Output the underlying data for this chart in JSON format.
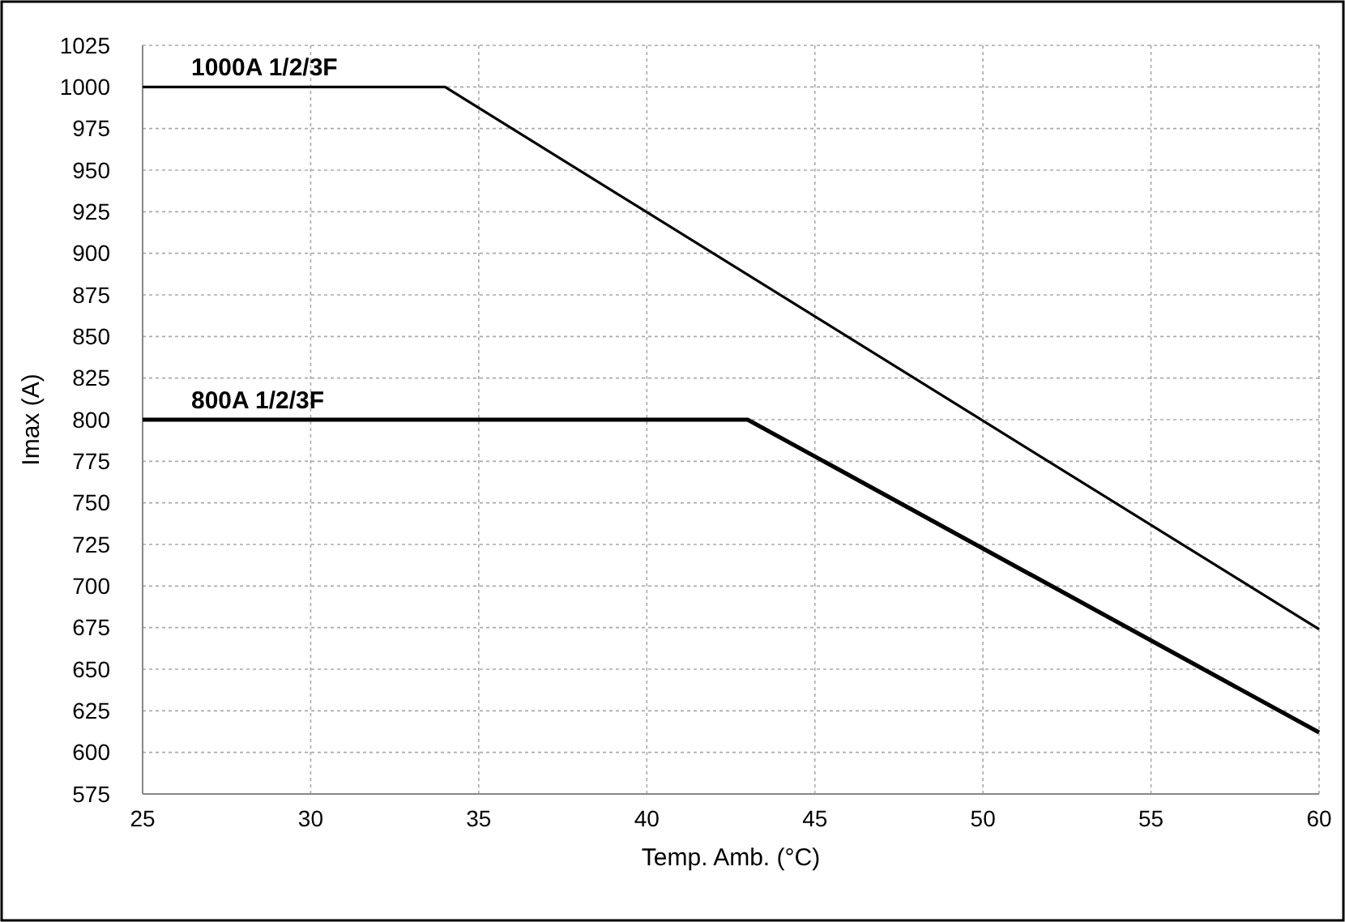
{
  "chart_data": {
    "type": "line",
    "xlabel": "Temp. Amb. (°C)",
    "ylabel": "Imax (A)",
    "xlim": [
      25,
      60
    ],
    "xticks": [
      25,
      30,
      35,
      40,
      45,
      50,
      55,
      60
    ],
    "ylim": [
      575,
      1025
    ],
    "yticks": [
      575,
      600,
      625,
      650,
      675,
      700,
      725,
      750,
      775,
      800,
      825,
      850,
      875,
      900,
      925,
      950,
      975,
      1000,
      1025
    ],
    "grid": true,
    "line_style": "solid",
    "marker": "none",
    "legend": false,
    "series": [
      {
        "name": "1000A 1/2/3F",
        "color": "#000000",
        "x": [
          25,
          34,
          60
        ],
        "values": [
          1000,
          1000,
          674
        ]
      },
      {
        "name": "800A 1/2/3F",
        "color": "#000000",
        "x": [
          25,
          43,
          60
        ],
        "values": [
          800,
          800,
          612
        ]
      }
    ]
  }
}
